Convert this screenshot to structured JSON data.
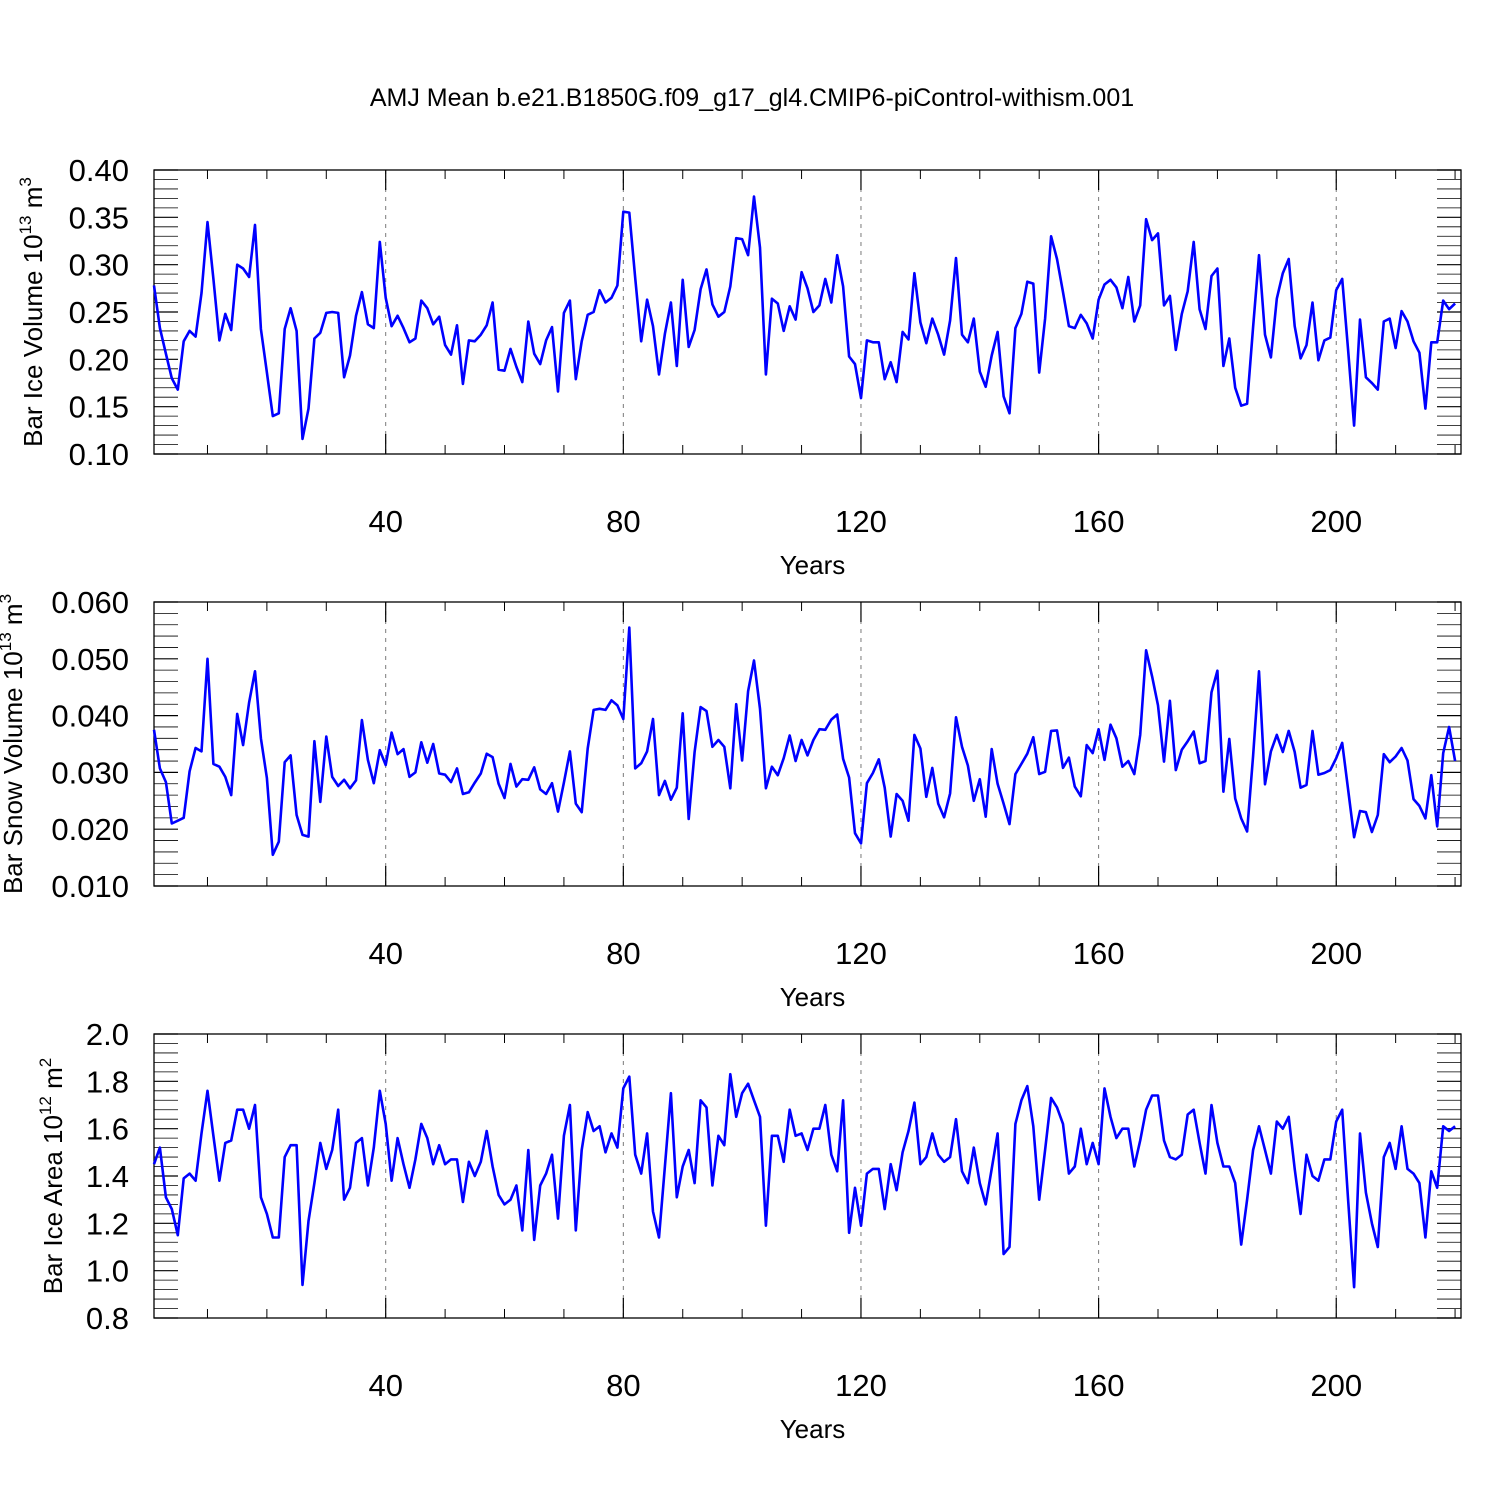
{
  "figure": {
    "title": "AMJ Mean b.e21.B1850G.f09_g17_gl4.CMIP6-piControl-withism.001",
    "line_color": "#0000ff"
  },
  "chart_data": [
    {
      "type": "line",
      "name": "ice-volume",
      "ylabel": {
        "text": "Bar Ice Volume 10",
        "exp": "13",
        "unit": " m",
        "unit_exp": "3"
      },
      "xlabel": "Years",
      "xlim": [
        1,
        221
      ],
      "ylim": [
        0.1,
        0.4
      ],
      "x_ticks": [
        40,
        80,
        120,
        160,
        200
      ],
      "x_tick_labels": [
        "40",
        "80",
        "120",
        "160",
        "200"
      ],
      "y_ticks": [
        0.1,
        0.15,
        0.2,
        0.25,
        0.3,
        0.35,
        0.4
      ],
      "y_tick_labels": [
        "0.10",
        "0.15",
        "0.20",
        "0.25",
        "0.30",
        "0.35",
        "0.40"
      ],
      "grid": "dashed vertical at major x ticks",
      "x_start": 1,
      "values": [
        0.278,
        0.233,
        0.206,
        0.18,
        0.168,
        0.219,
        0.23,
        0.224,
        0.27,
        0.345,
        0.285,
        0.22,
        0.248,
        0.231,
        0.3,
        0.296,
        0.287,
        0.342,
        0.232,
        0.186,
        0.14,
        0.143,
        0.232,
        0.254,
        0.23,
        0.116,
        0.148,
        0.222,
        0.228,
        0.249,
        0.25,
        0.249,
        0.181,
        0.204,
        0.246,
        0.271,
        0.237,
        0.233,
        0.324,
        0.265,
        0.235,
        0.246,
        0.233,
        0.218,
        0.222,
        0.262,
        0.254,
        0.237,
        0.245,
        0.215,
        0.205,
        0.236,
        0.174,
        0.22,
        0.219,
        0.226,
        0.236,
        0.26,
        0.189,
        0.188,
        0.211,
        0.192,
        0.176,
        0.24,
        0.206,
        0.195,
        0.22,
        0.234,
        0.166,
        0.249,
        0.262,
        0.179,
        0.219,
        0.247,
        0.25,
        0.273,
        0.26,
        0.265,
        0.278,
        0.356,
        0.355,
        0.286,
        0.219,
        0.263,
        0.235,
        0.184,
        0.227,
        0.26,
        0.193,
        0.284,
        0.213,
        0.231,
        0.274,
        0.295,
        0.258,
        0.245,
        0.25,
        0.277,
        0.328,
        0.327,
        0.31,
        0.372,
        0.318,
        0.184,
        0.264,
        0.259,
        0.23,
        0.256,
        0.242,
        0.292,
        0.275,
        0.25,
        0.257,
        0.285,
        0.26,
        0.31,
        0.277,
        0.203,
        0.195,
        0.159,
        0.22,
        0.218,
        0.218,
        0.179,
        0.197,
        0.176,
        0.229,
        0.221,
        0.291,
        0.239,
        0.217,
        0.243,
        0.226,
        0.205,
        0.241,
        0.307,
        0.226,
        0.218,
        0.243,
        0.187,
        0.171,
        0.204,
        0.229,
        0.161,
        0.143,
        0.233,
        0.248,
        0.282,
        0.28,
        0.186,
        0.243,
        0.33,
        0.306,
        0.271,
        0.235,
        0.233,
        0.247,
        0.238,
        0.222,
        0.263,
        0.279,
        0.284,
        0.276,
        0.254,
        0.287,
        0.24,
        0.257,
        0.348,
        0.326,
        0.333,
        0.257,
        0.267,
        0.21,
        0.248,
        0.272,
        0.324,
        0.253,
        0.232,
        0.288,
        0.296,
        0.193,
        0.222,
        0.17,
        0.151,
        0.153,
        0.234,
        0.31,
        0.226,
        0.202,
        0.264,
        0.291,
        0.306,
        0.235,
        0.201,
        0.215,
        0.26,
        0.199,
        0.22,
        0.223,
        0.273,
        0.285,
        0.21,
        0.13,
        0.242,
        0.181,
        0.175,
        0.168,
        0.24,
        0.243,
        0.212,
        0.251,
        0.24,
        0.219,
        0.207,
        0.148,
        0.218,
        0.218,
        0.262,
        0.253,
        0.259
      ]
    },
    {
      "type": "line",
      "name": "snow-volume",
      "ylabel": {
        "text": "Bar Snow Volume 10",
        "exp": "13",
        "unit": " m",
        "unit_exp": "3"
      },
      "xlabel": "Years",
      "xlim": [
        1,
        221
      ],
      "ylim": [
        0.01,
        0.06
      ],
      "x_ticks": [
        40,
        80,
        120,
        160,
        200
      ],
      "x_tick_labels": [
        "40",
        "80",
        "120",
        "160",
        "200"
      ],
      "y_ticks": [
        0.01,
        0.02,
        0.03,
        0.04,
        0.05,
        0.06
      ],
      "y_tick_labels": [
        "0.010",
        "0.020",
        "0.030",
        "0.040",
        "0.050",
        "0.060"
      ],
      "grid": "dashed vertical at major x ticks",
      "x_start": 1,
      "values": [
        0.0375,
        0.0307,
        0.0283,
        0.021,
        0.0215,
        0.022,
        0.0302,
        0.0343,
        0.0337,
        0.05,
        0.0315,
        0.031,
        0.0292,
        0.026,
        0.0403,
        0.0348,
        0.0423,
        0.0478,
        0.036,
        0.029,
        0.0155,
        0.0178,
        0.0318,
        0.033,
        0.0225,
        0.019,
        0.0187,
        0.0355,
        0.0248,
        0.0363,
        0.0292,
        0.0276,
        0.0287,
        0.0272,
        0.0286,
        0.0392,
        0.0322,
        0.0281,
        0.0339,
        0.0313,
        0.037,
        0.0332,
        0.0341,
        0.0292,
        0.03,
        0.0353,
        0.0317,
        0.035,
        0.0298,
        0.0296,
        0.0283,
        0.0307,
        0.0262,
        0.0265,
        0.0282,
        0.0298,
        0.0333,
        0.0327,
        0.028,
        0.0255,
        0.0315,
        0.0275,
        0.0288,
        0.0287,
        0.0309,
        0.027,
        0.0262,
        0.0281,
        0.0231,
        0.0282,
        0.0337,
        0.0245,
        0.023,
        0.0342,
        0.041,
        0.0412,
        0.041,
        0.0427,
        0.0418,
        0.0394,
        0.0555,
        0.0307,
        0.0316,
        0.0337,
        0.0394,
        0.026,
        0.0285,
        0.0252,
        0.0273,
        0.0404,
        0.0218,
        0.0336,
        0.0415,
        0.0408,
        0.0345,
        0.0357,
        0.0345,
        0.0272,
        0.042,
        0.0321,
        0.0443,
        0.0497,
        0.0412,
        0.0272,
        0.031,
        0.0295,
        0.0325,
        0.0365,
        0.032,
        0.0357,
        0.033,
        0.0357,
        0.0376,
        0.0375,
        0.0393,
        0.0402,
        0.0324,
        0.0291,
        0.0193,
        0.0175,
        0.0281,
        0.0299,
        0.0323,
        0.0273,
        0.0187,
        0.0262,
        0.025,
        0.0215,
        0.0366,
        0.0342,
        0.0257,
        0.0308,
        0.0245,
        0.0221,
        0.0263,
        0.0397,
        0.0345,
        0.0312,
        0.025,
        0.0288,
        0.0222,
        0.0341,
        0.028,
        0.0245,
        0.0209,
        0.0297,
        0.0315,
        0.0333,
        0.0362,
        0.0297,
        0.0301,
        0.0373,
        0.0374,
        0.0308,
        0.0326,
        0.0275,
        0.0258,
        0.0348,
        0.0334,
        0.0376,
        0.0322,
        0.0384,
        0.036,
        0.031,
        0.032,
        0.0297,
        0.0366,
        0.0515,
        0.0469,
        0.0418,
        0.0319,
        0.0426,
        0.0304,
        0.034,
        0.0355,
        0.0372,
        0.0316,
        0.032,
        0.0441,
        0.0479,
        0.0266,
        0.0359,
        0.0254,
        0.0219,
        0.0196,
        0.0329,
        0.0478,
        0.0279,
        0.0337,
        0.0366,
        0.0336,
        0.0373,
        0.0336,
        0.0273,
        0.0278,
        0.0373,
        0.0296,
        0.0299,
        0.0304,
        0.0325,
        0.0352,
        0.027,
        0.0186,
        0.0232,
        0.023,
        0.0195,
        0.0225,
        0.0332,
        0.0318,
        0.0328,
        0.0343,
        0.0321,
        0.0253,
        0.0241,
        0.0219,
        0.0295,
        0.0205,
        0.0334,
        0.038,
        0.032
      ]
    },
    {
      "type": "line",
      "name": "ice-area",
      "ylabel": {
        "text": "Bar Ice Area 10",
        "exp": "12",
        "unit": " m",
        "unit_exp": "2"
      },
      "xlabel": "Years",
      "xlim": [
        1,
        221
      ],
      "ylim": [
        0.8,
        2.0
      ],
      "x_ticks": [
        40,
        80,
        120,
        160,
        200
      ],
      "x_tick_labels": [
        "40",
        "80",
        "120",
        "160",
        "200"
      ],
      "y_ticks": [
        0.8,
        1.0,
        1.2,
        1.4,
        1.6,
        1.8,
        2.0
      ],
      "y_tick_labels": [
        "0.8",
        "1.0",
        "1.2",
        "1.4",
        "1.6",
        "1.8",
        "2.0"
      ],
      "grid": "dashed vertical at major x ticks",
      "x_start": 1,
      "values": [
        1.45,
        1.52,
        1.31,
        1.26,
        1.15,
        1.39,
        1.41,
        1.38,
        1.58,
        1.76,
        1.57,
        1.38,
        1.54,
        1.55,
        1.68,
        1.68,
        1.6,
        1.7,
        1.31,
        1.24,
        1.14,
        1.14,
        1.48,
        1.53,
        1.53,
        0.94,
        1.21,
        1.37,
        1.54,
        1.43,
        1.51,
        1.68,
        1.3,
        1.35,
        1.54,
        1.56,
        1.36,
        1.52,
        1.76,
        1.62,
        1.38,
        1.56,
        1.45,
        1.35,
        1.47,
        1.62,
        1.56,
        1.45,
        1.53,
        1.45,
        1.47,
        1.47,
        1.29,
        1.46,
        1.4,
        1.46,
        1.59,
        1.44,
        1.32,
        1.28,
        1.3,
        1.36,
        1.17,
        1.51,
        1.13,
        1.36,
        1.41,
        1.49,
        1.22,
        1.57,
        1.7,
        1.17,
        1.51,
        1.67,
        1.59,
        1.61,
        1.5,
        1.58,
        1.52,
        1.77,
        1.82,
        1.49,
        1.41,
        1.58,
        1.25,
        1.14,
        1.44,
        1.75,
        1.31,
        1.44,
        1.51,
        1.37,
        1.72,
        1.69,
        1.36,
        1.57,
        1.53,
        1.83,
        1.65,
        1.75,
        1.79,
        1.72,
        1.65,
        1.19,
        1.57,
        1.57,
        1.46,
        1.68,
        1.57,
        1.58,
        1.51,
        1.6,
        1.6,
        1.7,
        1.49,
        1.42,
        1.72,
        1.16,
        1.35,
        1.19,
        1.41,
        1.43,
        1.43,
        1.26,
        1.45,
        1.34,
        1.5,
        1.59,
        1.71,
        1.45,
        1.48,
        1.58,
        1.49,
        1.46,
        1.48,
        1.64,
        1.42,
        1.37,
        1.52,
        1.37,
        1.28,
        1.43,
        1.58,
        1.07,
        1.1,
        1.62,
        1.72,
        1.78,
        1.61,
        1.3,
        1.51,
        1.73,
        1.69,
        1.62,
        1.41,
        1.44,
        1.6,
        1.45,
        1.54,
        1.45,
        1.77,
        1.65,
        1.56,
        1.6,
        1.6,
        1.44,
        1.55,
        1.68,
        1.74,
        1.74,
        1.55,
        1.48,
        1.47,
        1.49,
        1.66,
        1.68,
        1.54,
        1.41,
        1.7,
        1.54,
        1.44,
        1.44,
        1.37,
        1.11,
        1.3,
        1.51,
        1.61,
        1.51,
        1.41,
        1.63,
        1.6,
        1.65,
        1.43,
        1.24,
        1.49,
        1.4,
        1.38,
        1.47,
        1.47,
        1.63,
        1.68,
        1.3,
        0.93,
        1.58,
        1.33,
        1.2,
        1.1,
        1.48,
        1.54,
        1.43,
        1.61,
        1.43,
        1.41,
        1.37,
        1.14,
        1.42,
        1.35,
        1.61,
        1.59,
        1.61
      ]
    }
  ]
}
